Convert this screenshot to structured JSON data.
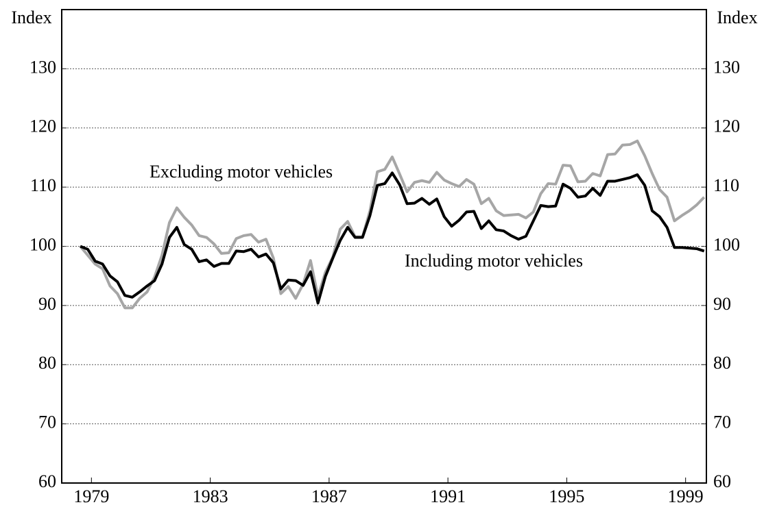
{
  "chart_data": {
    "type": "line",
    "y_label": "Index",
    "x": [
      1978.625,
      1978.875,
      1979.125,
      1979.375,
      1979.625,
      1979.875,
      1980.125,
      1980.375,
      1980.625,
      1980.875,
      1981.125,
      1981.375,
      1981.625,
      1981.875,
      1982.125,
      1982.375,
      1982.625,
      1982.875,
      1983.125,
      1983.375,
      1983.625,
      1983.875,
      1984.125,
      1984.375,
      1984.625,
      1984.875,
      1985.125,
      1985.375,
      1985.625,
      1985.875,
      1986.125,
      1986.375,
      1986.625,
      1986.875,
      1987.125,
      1987.375,
      1987.625,
      1987.875,
      1988.125,
      1988.375,
      1988.625,
      1988.875,
      1989.125,
      1989.375,
      1989.625,
      1989.875,
      1990.125,
      1990.375,
      1990.625,
      1990.875,
      1991.125,
      1991.375,
      1991.625,
      1991.875,
      1992.125,
      1992.375,
      1992.625,
      1992.875,
      1993.125,
      1993.375,
      1993.625,
      1993.875,
      1994.125,
      1994.375,
      1994.625,
      1994.875,
      1995.125,
      1995.375,
      1995.625,
      1995.875,
      1996.125,
      1996.375,
      1996.625,
      1996.875,
      1997.125,
      1997.375,
      1997.625,
      1997.875,
      1998.125,
      1998.375,
      1998.625,
      1998.875,
      1999.125,
      1999.375,
      1999.625
    ],
    "series": [
      {
        "name": "Excluding motor vehicles",
        "color": "#a6a6a6",
        "values": [
          100,
          98.5,
          97,
          96.2,
          93.3,
          92,
          89.6,
          89.6,
          91.2,
          92.3,
          94.8,
          98.5,
          104,
          106.5,
          104.9,
          103.6,
          101.8,
          101.5,
          100.4,
          98.8,
          98.9,
          101.3,
          101.8,
          102,
          100.7,
          101.2,
          98,
          92,
          93.2,
          91.2,
          93.6,
          97.6,
          91.5,
          95.6,
          98.2,
          102.9,
          104.2,
          101.6,
          101.6,
          106,
          112.6,
          113,
          115.1,
          112.2,
          109.2,
          110.8,
          111.1,
          110.8,
          112.5,
          111.2,
          110.6,
          110.1,
          111.3,
          110.5,
          107.2,
          108.1,
          106,
          105.2,
          105.3,
          105.4,
          104.8,
          105.8,
          108.9,
          110.6,
          110.5,
          113.7,
          113.6,
          110.9,
          111,
          112.3,
          111.9,
          115.5,
          115.6,
          117.1,
          117.2,
          117.8,
          115.3,
          112.3,
          109.6,
          108.3,
          104.3,
          105.2,
          106,
          107,
          108.3
        ]
      },
      {
        "name": "Including motor vehicles",
        "color": "#000000",
        "values": [
          100,
          99.5,
          97.5,
          97,
          95,
          94,
          91.7,
          91.4,
          92.3,
          93.3,
          94.2,
          97,
          101.5,
          103.2,
          100.3,
          99.5,
          97.4,
          97.7,
          96.6,
          97.1,
          97.1,
          99.2,
          99.1,
          99.5,
          98.2,
          98.7,
          97.2,
          92.8,
          94.3,
          94.2,
          93.4,
          95.7,
          90.4,
          94.9,
          98,
          101,
          103.2,
          101.5,
          101.5,
          105.2,
          110.3,
          110.6,
          112.4,
          110.4,
          107.2,
          107.3,
          108.1,
          107.1,
          108,
          105,
          103.4,
          104.4,
          105.8,
          105.9,
          103,
          104.3,
          102.8,
          102.6,
          101.8,
          101.2,
          101.7,
          104.3,
          106.9,
          106.7,
          106.8,
          110.5,
          109.8,
          108.3,
          108.5,
          109.8,
          108.6,
          111,
          111,
          111.3,
          111.6,
          112.1,
          110.3,
          106,
          105,
          103.2,
          99.8,
          99.8,
          99.7,
          99.6,
          99.2
        ]
      }
    ],
    "xlim": [
      1978,
      1999.7
    ],
    "xticks": [
      1979,
      1983,
      1987,
      1991,
      1995,
      1999
    ],
    "ylim": [
      60,
      140
    ],
    "yticks": [
      60,
      70,
      80,
      90,
      100,
      110,
      120,
      130
    ],
    "grid": true
  }
}
